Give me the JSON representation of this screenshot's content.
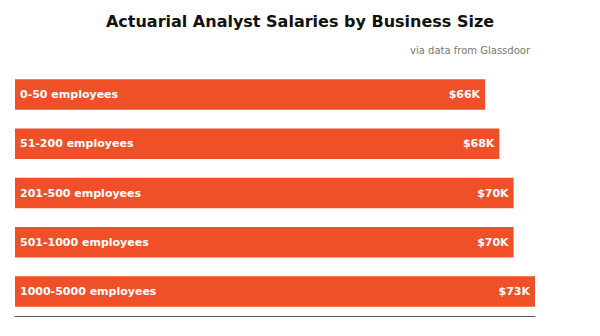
{
  "chart_data": {
    "type": "bar",
    "orientation": "horizontal",
    "title": "Actuarial Analyst Salaries by Business Size",
    "subtitle": "via data from Glassdoor",
    "categories": [
      "0-50 employees",
      "51-200 employees",
      "201-500 employees",
      "501-1000 employees",
      "1000-5000 employees"
    ],
    "values": [
      66,
      68,
      70,
      70,
      73
    ],
    "value_labels": [
      "$66K",
      "$68K",
      "$70K",
      "$70K",
      "$73K"
    ],
    "data_labels": true,
    "color": "#f05028",
    "xlim": [
      0,
      73
    ],
    "grid": false,
    "tick_labels": false
  }
}
